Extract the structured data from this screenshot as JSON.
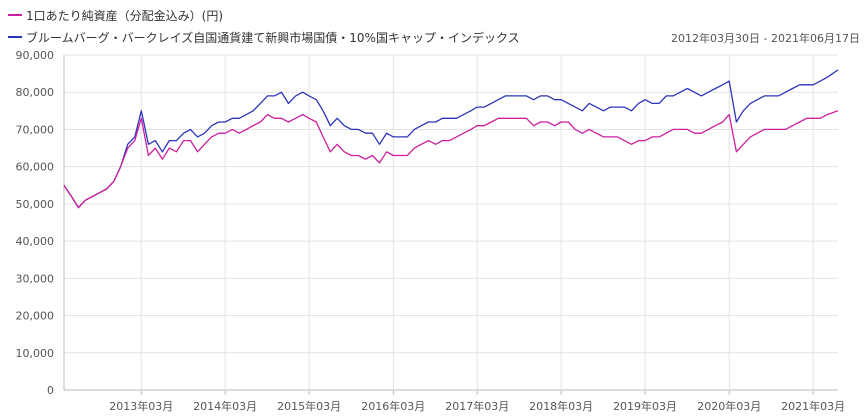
{
  "legend": {
    "items": [
      {
        "label": "1口あたり純資産（分配金込み）(円)",
        "color": "#cc1f9e"
      },
      {
        "label": "ブルームバーグ・バークレイズ自国通貨建て新興市場国債・10%国キャップ・インデックス",
        "color": "#2b35b8"
      }
    ]
  },
  "date_range": "2012年03月30日 - 2021年06月17日",
  "chart_data": {
    "type": "line",
    "title": "",
    "xlabel": "",
    "ylabel": "",
    "ylim": [
      0,
      90000
    ],
    "yticks": [
      0,
      10000,
      20000,
      30000,
      40000,
      50000,
      60000,
      70000,
      80000,
      90000
    ],
    "ytick_labels": [
      "0",
      "10,000",
      "20,000",
      "30,000",
      "40,000",
      "50,000",
      "60,000",
      "70,000",
      "80,000",
      "90,000"
    ],
    "xlim": [
      "2012-03-30",
      "2021-06-17"
    ],
    "xticks": [
      "2013-03-01",
      "2014-03-01",
      "2015-03-01",
      "2016-03-01",
      "2017-03-01",
      "2018-03-01",
      "2019-03-01",
      "2020-03-01",
      "2021-03-01"
    ],
    "xtick_labels": [
      "2013年03月",
      "2014年03月",
      "2015年03月",
      "2016年03月",
      "2017年03月",
      "2018年03月",
      "2019年03月",
      "2020年03月",
      "2021年03月"
    ],
    "grid": true,
    "legend_position": "top-left",
    "x": [
      "2012-03-30",
      "2012-05-01",
      "2012-06-01",
      "2012-07-01",
      "2012-08-01",
      "2012-09-01",
      "2012-10-01",
      "2012-11-01",
      "2012-12-01",
      "2013-01-01",
      "2013-02-01",
      "2013-03-01",
      "2013-04-01",
      "2013-05-01",
      "2013-06-01",
      "2013-07-01",
      "2013-08-01",
      "2013-09-01",
      "2013-10-01",
      "2013-11-01",
      "2013-12-01",
      "2014-01-01",
      "2014-02-01",
      "2014-03-01",
      "2014-04-01",
      "2014-05-01",
      "2014-06-01",
      "2014-07-01",
      "2014-08-01",
      "2014-09-01",
      "2014-10-01",
      "2014-11-01",
      "2014-12-01",
      "2015-01-01",
      "2015-02-01",
      "2015-03-01",
      "2015-04-01",
      "2015-05-01",
      "2015-06-01",
      "2015-07-01",
      "2015-08-01",
      "2015-09-01",
      "2015-10-01",
      "2015-11-01",
      "2015-12-01",
      "2016-01-01",
      "2016-02-01",
      "2016-03-01",
      "2016-04-01",
      "2016-05-01",
      "2016-06-01",
      "2016-07-01",
      "2016-08-01",
      "2016-09-01",
      "2016-10-01",
      "2016-11-01",
      "2016-12-01",
      "2017-01-01",
      "2017-02-01",
      "2017-03-01",
      "2017-04-01",
      "2017-05-01",
      "2017-06-01",
      "2017-07-01",
      "2017-08-01",
      "2017-09-01",
      "2017-10-01",
      "2017-11-01",
      "2017-12-01",
      "2018-01-01",
      "2018-02-01",
      "2018-03-01",
      "2018-04-01",
      "2018-05-01",
      "2018-06-01",
      "2018-07-01",
      "2018-08-01",
      "2018-09-01",
      "2018-10-01",
      "2018-11-01",
      "2018-12-01",
      "2019-01-01",
      "2019-02-01",
      "2019-03-01",
      "2019-04-01",
      "2019-05-01",
      "2019-06-01",
      "2019-07-01",
      "2019-08-01",
      "2019-09-01",
      "2019-10-01",
      "2019-11-01",
      "2019-12-01",
      "2020-01-01",
      "2020-02-01",
      "2020-03-01",
      "2020-04-01",
      "2020-05-01",
      "2020-06-01",
      "2020-07-01",
      "2020-08-01",
      "2020-09-01",
      "2020-10-01",
      "2020-11-01",
      "2020-12-01",
      "2021-01-01",
      "2021-02-01",
      "2021-03-01",
      "2021-04-01",
      "2021-05-01",
      "2021-06-17"
    ],
    "series": [
      {
        "name": "1口あたり純資産（分配金込み）(円)",
        "color": "#cc1f9e",
        "values": [
          55000,
          52000,
          49000,
          51000,
          52000,
          53000,
          54000,
          56000,
          60000,
          65000,
          67000,
          73000,
          63000,
          65000,
          62000,
          65000,
          64000,
          67000,
          67000,
          64000,
          66000,
          68000,
          69000,
          69000,
          70000,
          69000,
          70000,
          71000,
          72000,
          74000,
          73000,
          73000,
          72000,
          73000,
          74000,
          73000,
          72000,
          68000,
          64000,
          66000,
          64000,
          63000,
          63000,
          62000,
          63000,
          61000,
          64000,
          63000,
          63000,
          63000,
          65000,
          66000,
          67000,
          66000,
          67000,
          67000,
          68000,
          69000,
          70000,
          71000,
          71000,
          72000,
          73000,
          73000,
          73000,
          73000,
          73000,
          71000,
          72000,
          72000,
          71000,
          72000,
          72000,
          70000,
          69000,
          70000,
          69000,
          68000,
          68000,
          68000,
          67000,
          66000,
          67000,
          67000,
          68000,
          68000,
          69000,
          70000,
          70000,
          70000,
          69000,
          69000,
          70000,
          71000,
          72000,
          74000,
          64000,
          66000,
          68000,
          69000,
          70000,
          70000,
          70000,
          70000,
          71000,
          72000,
          73000,
          73000,
          73000,
          74000,
          75000
        ]
      },
      {
        "name": "ブルームバーグ・バークレイズ自国通貨建て新興市場国債・10%国キャップ・インデックス",
        "color": "#2b35b8",
        "values": [
          55000,
          52000,
          49000,
          51000,
          52000,
          53000,
          54000,
          56000,
          60000,
          66000,
          68000,
          75000,
          66000,
          67000,
          64000,
          67000,
          67000,
          69000,
          70000,
          68000,
          69000,
          71000,
          72000,
          72000,
          73000,
          73000,
          74000,
          75000,
          77000,
          79000,
          79000,
          80000,
          77000,
          79000,
          80000,
          79000,
          78000,
          75000,
          71000,
          73000,
          71000,
          70000,
          70000,
          69000,
          69000,
          66000,
          69000,
          68000,
          68000,
          68000,
          70000,
          71000,
          72000,
          72000,
          73000,
          73000,
          73000,
          74000,
          75000,
          76000,
          76000,
          77000,
          78000,
          79000,
          79000,
          79000,
          79000,
          78000,
          79000,
          79000,
          78000,
          78000,
          77000,
          76000,
          75000,
          77000,
          76000,
          75000,
          76000,
          76000,
          76000,
          75000,
          77000,
          78000,
          77000,
          77000,
          79000,
          79000,
          80000,
          81000,
          80000,
          79000,
          80000,
          81000,
          82000,
          83000,
          72000,
          75000,
          77000,
          78000,
          79000,
          79000,
          79000,
          80000,
          81000,
          82000,
          82000,
          82000,
          83000,
          84000,
          86000
        ]
      }
    ]
  }
}
